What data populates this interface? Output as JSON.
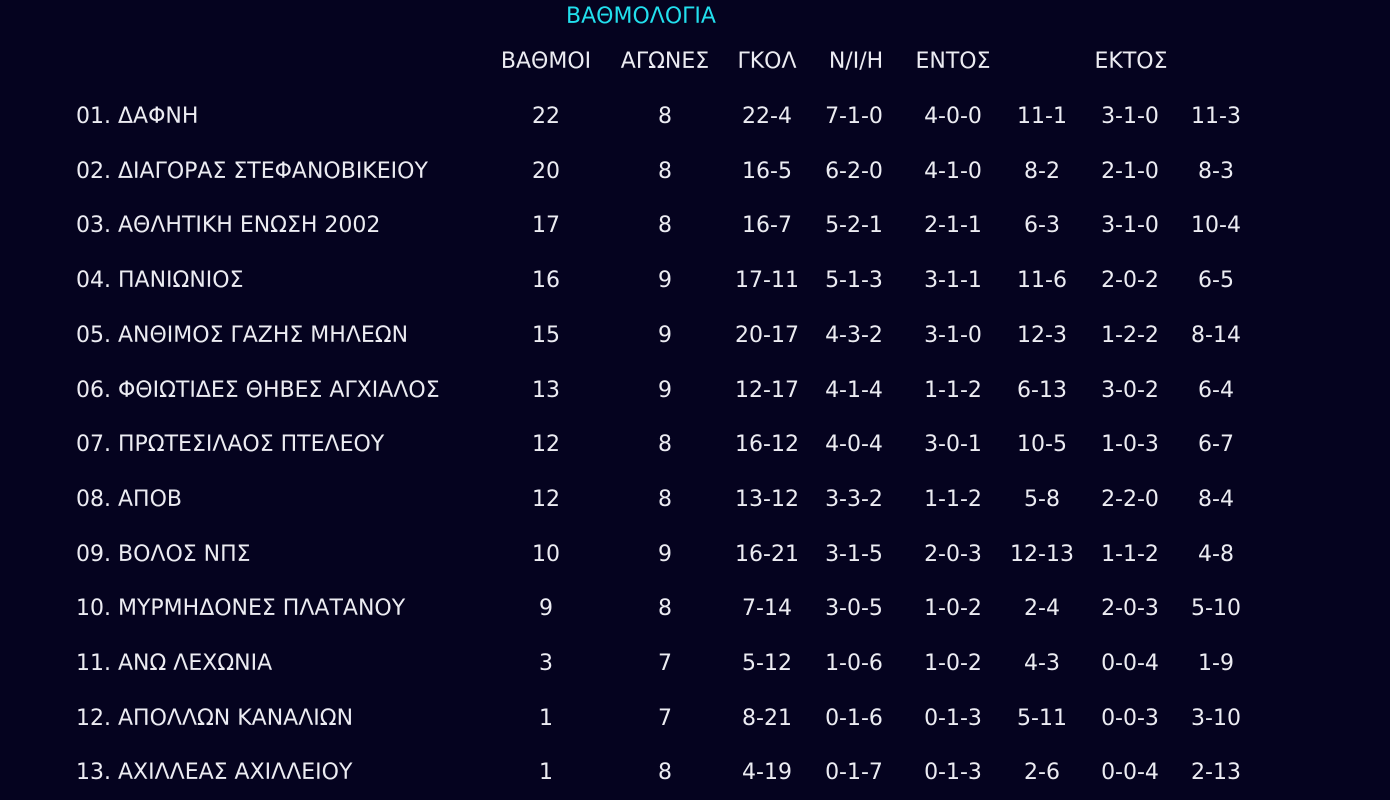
{
  "title": "ΒΑΘΜΟΛΟΓΙΑ",
  "headers": {
    "points": "ΒΑΘΜΟΙ",
    "games": "ΑΓΩΝΕΣ",
    "goals": "ΓΚΟΛ",
    "record": "Ν/Ι/Η",
    "home": "ΕΝΤΟΣ",
    "away": "ΕΚΤΟΣ"
  },
  "colors": {
    "background": "#05031f",
    "title": "#22e0ee",
    "text": "#ececf2"
  },
  "rows": [
    {
      "team": "01. ΔΑΦΝΗ",
      "points": "22",
      "games": "8",
      "goals": "22-4",
      "record": "7-1-0",
      "home_record": "4-0-0",
      "home_goals": "11-1",
      "away_record": "3-1-0",
      "away_goals": "11-3"
    },
    {
      "team": "02. ΔΙΑΓΟΡΑΣ ΣΤΕΦΑΝΟΒΙΚΕΙΟΥ",
      "points": "20",
      "games": "8",
      "goals": "16-5",
      "record": "6-2-0",
      "home_record": "4-1-0",
      "home_goals": "8-2",
      "away_record": "2-1-0",
      "away_goals": "8-3"
    },
    {
      "team": "03. ΑΘΛΗΤΙΚΗ ΕΝΩΣΗ 2002",
      "points": "17",
      "games": "8",
      "goals": "16-7",
      "record": "5-2-1",
      "home_record": "2-1-1",
      "home_goals": "6-3",
      "away_record": "3-1-0",
      "away_goals": "10-4"
    },
    {
      "team": "04. ΠΑΝΙΩΝΙΟΣ",
      "points": "16",
      "games": "9",
      "goals": "17-11",
      "record": "5-1-3",
      "home_record": "3-1-1",
      "home_goals": "11-6",
      "away_record": "2-0-2",
      "away_goals": "6-5"
    },
    {
      "team": "05. ΑΝΘΙΜΟΣ ΓΑΖΗΣ ΜΗΛΕΩΝ",
      "points": "15",
      "games": "9",
      "goals": "20-17",
      "record": "4-3-2",
      "home_record": "3-1-0",
      "home_goals": "12-3",
      "away_record": "1-2-2",
      "away_goals": "8-14"
    },
    {
      "team": "06. ΦΘΙΩΤΙΔΕΣ ΘΗΒΕΣ ΑΓΧΙΑΛΟΣ",
      "points": "13",
      "games": "9",
      "goals": "12-17",
      "record": "4-1-4",
      "home_record": "1-1-2",
      "home_goals": "6-13",
      "away_record": "3-0-2",
      "away_goals": "6-4"
    },
    {
      "team": "07. ΠΡΩΤΕΣΙΛΑΟΣ ΠΤΕΛΕΟΥ",
      "points": "12",
      "games": "8",
      "goals": "16-12",
      "record": "4-0-4",
      "home_record": "3-0-1",
      "home_goals": "10-5",
      "away_record": "1-0-3",
      "away_goals": "6-7"
    },
    {
      "team": "08. ΑΠΟΒ",
      "points": "12",
      "games": "8",
      "goals": "13-12",
      "record": "3-3-2",
      "home_record": "1-1-2",
      "home_goals": "5-8",
      "away_record": "2-2-0",
      "away_goals": "8-4"
    },
    {
      "team": "09. ΒΟΛΟΣ ΝΠΣ",
      "points": "10",
      "games": "9",
      "goals": "16-21",
      "record": "3-1-5",
      "home_record": "2-0-3",
      "home_goals": "12-13",
      "away_record": "1-1-2",
      "away_goals": "4-8"
    },
    {
      "team": "10. ΜΥΡΜΗΔΟΝΕΣ ΠΛΑΤΑΝΟΥ",
      "points": "9",
      "games": "8",
      "goals": "7-14",
      "record": "3-0-5",
      "home_record": "1-0-2",
      "home_goals": "2-4",
      "away_record": "2-0-3",
      "away_goals": "5-10"
    },
    {
      "team": "11. ΑΝΩ ΛΕΧΩΝΙΑ",
      "points": "3",
      "games": "7",
      "goals": "5-12",
      "record": "1-0-6",
      "home_record": "1-0-2",
      "home_goals": "4-3",
      "away_record": "0-0-4",
      "away_goals": "1-9"
    },
    {
      "team": "12. ΑΠΟΛΛΩΝ ΚΑΝΑΛΙΩΝ",
      "points": "1",
      "games": "7",
      "goals": "8-21",
      "record": "0-1-6",
      "home_record": "0-1-3",
      "home_goals": "5-11",
      "away_record": "0-0-3",
      "away_goals": "3-10"
    },
    {
      "team": "13. ΑΧΙΛΛΕΑΣ ΑΧΙΛΛΕΙΟΥ",
      "points": "1",
      "games": "8",
      "goals": "4-19",
      "record": "0-1-7",
      "home_record": "0-1-3",
      "home_goals": "2-6",
      "away_record": "0-0-4",
      "away_goals": "2-13"
    }
  ]
}
